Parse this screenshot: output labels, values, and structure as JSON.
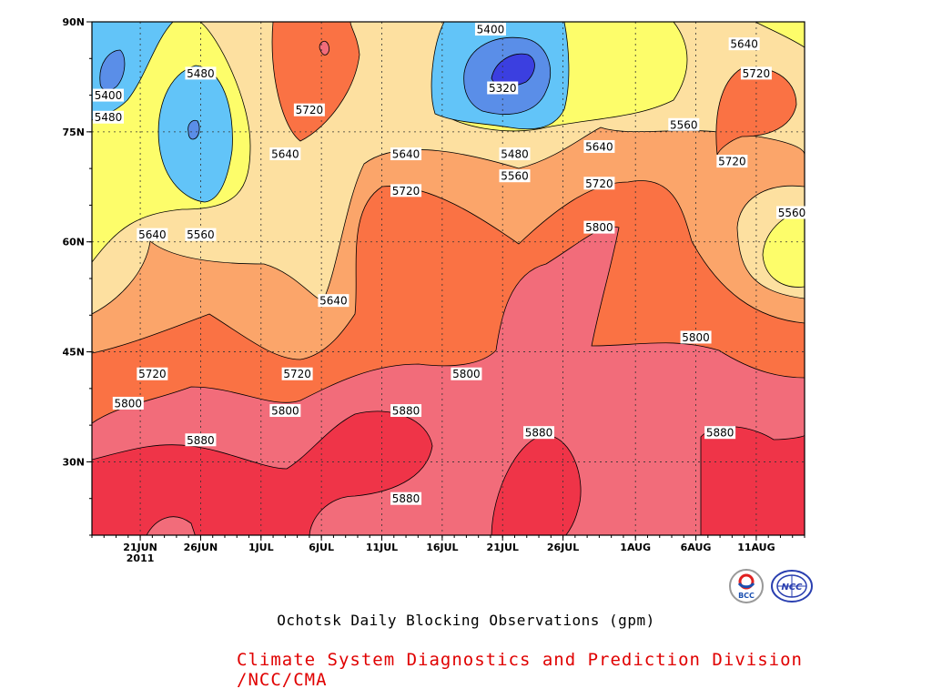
{
  "chart_data": {
    "type": "heatmap",
    "title": "Ochotsk Daily Blocking Observations (gpm)",
    "x_axis": {
      "ticks": [
        "21JUN",
        "26JUN",
        "1JUL",
        "6JUL",
        "11JUL",
        "16JUL",
        "21JUL",
        "26JUL",
        "1AUG",
        "6AUG",
        "11AUG"
      ],
      "year_label": "2011",
      "range": [
        "2011-06-17",
        "2011-08-15"
      ]
    },
    "y_axis": {
      "ticks": [
        "30N",
        "45N",
        "60N",
        "75N",
        "90N"
      ],
      "range": [
        20,
        90
      ]
    },
    "grid": true,
    "contour_levels": [
      5320,
      5400,
      5480,
      5560,
      5640,
      5720,
      5800,
      5880
    ],
    "colors": {
      "lt5320": "#3b3fe0",
      "5320_5400": "#5a8ee8",
      "5400_5480": "#62c4f8",
      "5480_5560": "#fdfd6a",
      "5560_5640": "#fde0a0",
      "5640_5720": "#fba56a",
      "5720_5800": "#fa7244",
      "5800_5880": "#f26c7a",
      "gt5880": "#ef3448"
    },
    "contour_labels": [
      {
        "value": "5400",
        "date": "2011-07-20",
        "lat": 89
      },
      {
        "value": "5640",
        "date": "2011-08-10",
        "lat": 87
      },
      {
        "value": "5480",
        "date": "2011-06-26",
        "lat": 83
      },
      {
        "value": "5720",
        "date": "2011-08-11",
        "lat": 83
      },
      {
        "value": "5320",
        "date": "2011-07-21",
        "lat": 81
      },
      {
        "value": "5400",
        "date": "2011-06-17",
        "lat": 80
      },
      {
        "value": "5720",
        "date": "2011-07-05",
        "lat": 78
      },
      {
        "value": "5480",
        "date": "2011-06-17",
        "lat": 77
      },
      {
        "value": "5560",
        "date": "2011-08-05",
        "lat": 76
      },
      {
        "value": "5640",
        "date": "2011-07-29",
        "lat": 73
      },
      {
        "value": "5480",
        "date": "2011-07-22",
        "lat": 72
      },
      {
        "value": "5640",
        "date": "2011-07-03",
        "lat": 72
      },
      {
        "value": "5640",
        "date": "2011-07-13",
        "lat": 72
      },
      {
        "value": "5720",
        "date": "2011-08-09",
        "lat": 71
      },
      {
        "value": "5560",
        "date": "2011-07-22",
        "lat": 69
      },
      {
        "value": "5720",
        "date": "2011-07-29",
        "lat": 68
      },
      {
        "value": "5720",
        "date": "2011-07-13",
        "lat": 67
      },
      {
        "value": "5800",
        "date": "2011-07-29",
        "lat": 62
      },
      {
        "value": "5640",
        "date": "2011-06-22",
        "lat": 61
      },
      {
        "value": "5560",
        "date": "2011-06-26",
        "lat": 61
      },
      {
        "value": "5560",
        "date": "2011-08-15",
        "lat": 64
      },
      {
        "value": "5640",
        "date": "2011-07-07",
        "lat": 52
      },
      {
        "value": "5800",
        "date": "2011-08-06",
        "lat": 47
      },
      {
        "value": "5720",
        "date": "2011-06-22",
        "lat": 42
      },
      {
        "value": "5720",
        "date": "2011-07-04",
        "lat": 42
      },
      {
        "value": "5800",
        "date": "2011-07-18",
        "lat": 42
      },
      {
        "value": "5800",
        "date": "2011-06-20",
        "lat": 38
      },
      {
        "value": "5800",
        "date": "2011-07-03",
        "lat": 37
      },
      {
        "value": "5880",
        "date": "2011-07-13",
        "lat": 37
      },
      {
        "value": "5880",
        "date": "2011-07-24",
        "lat": 34
      },
      {
        "value": "5880",
        "date": "2011-08-08",
        "lat": 34
      },
      {
        "value": "5880",
        "date": "2011-06-26",
        "lat": 33
      },
      {
        "value": "5880",
        "date": "2011-07-13",
        "lat": 25
      }
    ]
  },
  "footer": {
    "title": "Ochotsk Daily Blocking Observations (gpm)",
    "credit": "Climate System Diagnostics and Prediction Division /NCC/CMA",
    "logos": [
      "BCC",
      "NCC"
    ]
  }
}
